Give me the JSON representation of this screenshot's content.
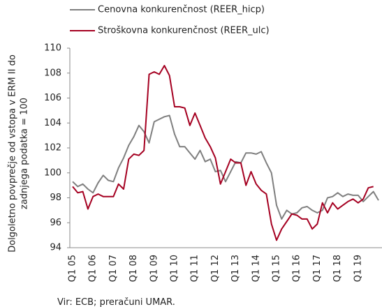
{
  "chart_data": {
    "type": "line",
    "y_label_lines": [
      "Dolgoletno povprečje od vstopa v ERM II do",
      "zadnjega podatka = 100"
    ],
    "source": "Vir: ECB; preračuni UMAR.",
    "legend": "top",
    "categories": [
      "Q1 05",
      null,
      null,
      null,
      "Q1 06",
      null,
      null,
      null,
      "Q1 07",
      null,
      null,
      null,
      "Q1 08",
      null,
      null,
      null,
      "Q1 09",
      null,
      null,
      null,
      "Q1 10",
      null,
      null,
      null,
      "Q1 11",
      null,
      null,
      null,
      "Q1 12",
      null,
      null,
      null,
      "Q1 13",
      null,
      null,
      null,
      "Q1 14",
      null,
      null,
      null,
      "Q1 15",
      null,
      null,
      null,
      "Q1 16",
      null,
      null,
      null,
      "Q1 17",
      null,
      null,
      null,
      "Q1 18",
      null,
      null,
      null,
      "Q1 19",
      null,
      null,
      null,
      null
    ],
    "series": [
      {
        "name": "Cenovna konkurenčnost (REER_hicp)",
        "color": "#7f7f7f",
        "values": [
          99.3,
          98.9,
          99.1,
          98.7,
          98.4,
          99.2,
          99.8,
          99.4,
          99.3,
          100.4,
          101.2,
          102.2,
          102.9,
          103.8,
          103.3,
          102.4,
          104.1,
          104.3,
          104.5,
          104.6,
          103.1,
          102.1,
          102.1,
          101.6,
          101.1,
          101.8,
          100.9,
          101.1,
          100.1,
          100.2,
          99.3,
          100.1,
          100.9,
          100.8,
          101.6,
          101.6,
          101.5,
          101.7,
          100.8,
          100.0,
          97.4,
          96.3,
          97.0,
          96.7,
          96.8,
          97.2,
          97.3,
          97.0,
          96.8,
          97.0,
          98.0,
          98.1,
          98.4,
          98.1,
          98.3,
          98.2,
          98.2,
          97.7,
          98.1,
          98.5,
          97.8
        ]
      },
      {
        "name": "Stroškovna konkurenčnost (REER_ulc)",
        "color": "#a50021",
        "values": [
          98.9,
          98.4,
          98.5,
          97.1,
          98.1,
          98.3,
          98.1,
          98.1,
          98.1,
          99.1,
          98.7,
          101.1,
          101.5,
          101.4,
          101.8,
          107.9,
          108.1,
          107.9,
          108.6,
          107.8,
          105.3,
          105.3,
          105.2,
          103.8,
          104.8,
          103.8,
          102.8,
          102.1,
          101.2,
          99.1,
          100.1,
          101.1,
          100.8,
          100.8,
          99.0,
          100.1,
          99.1,
          98.6,
          98.3,
          95.9,
          94.6,
          95.5,
          96.1,
          96.7,
          96.6,
          96.3,
          96.3,
          95.5,
          95.9,
          97.6,
          96.8,
          97.6,
          97.1,
          97.4,
          97.7,
          97.9,
          97.6,
          97.9,
          98.8,
          98.9,
          null
        ]
      }
    ],
    "ylim": [
      94,
      110
    ],
    "yticks": [
      94,
      96,
      98,
      100,
      102,
      104,
      106,
      108,
      110
    ],
    "grid": false
  }
}
